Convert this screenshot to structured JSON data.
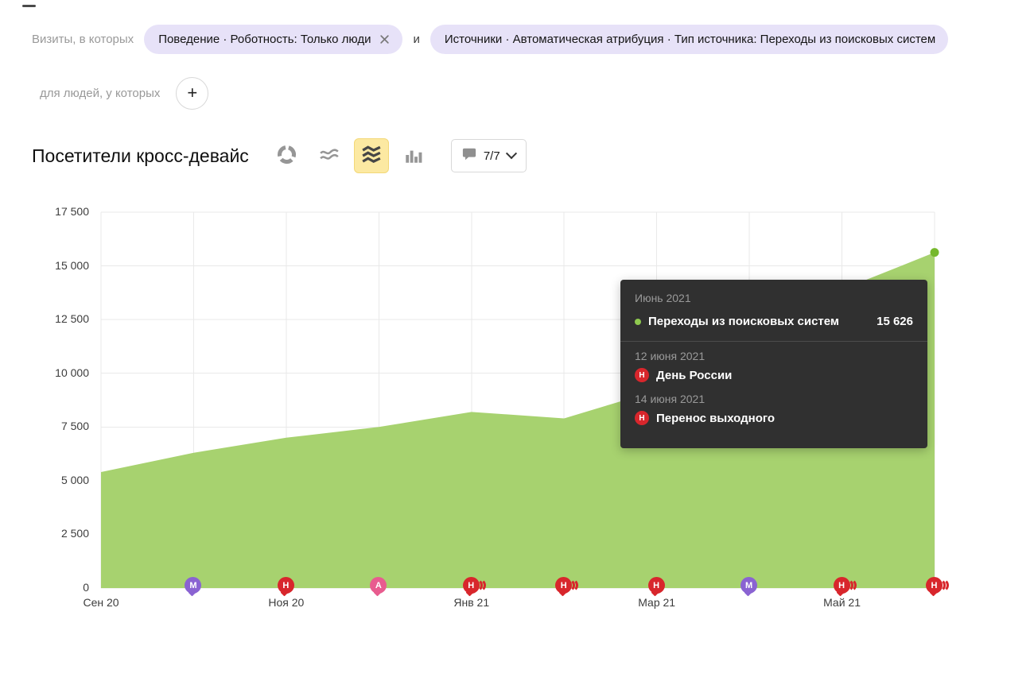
{
  "filters": {
    "prefix": "Визиты, в которых",
    "connector": "и",
    "chips": [
      {
        "label": "Поведение · Роботность: Только люди"
      },
      {
        "label": "Источники · Автоматическая атрибуция · Тип источника: Переходы из поисковых систем"
      }
    ],
    "second_row_label": "для людей, у которых",
    "add_label": "+"
  },
  "header": {
    "title": "Посетители кросс-девайс",
    "comments_count": "7/7"
  },
  "chart_data": {
    "type": "area",
    "title": "Посетители кросс-девайс",
    "x_count": 10,
    "x_ticks": [
      {
        "index": 0,
        "label": "Сен 20"
      },
      {
        "index": 2,
        "label": "Ноя 20"
      },
      {
        "index": 4,
        "label": "Янв 21"
      },
      {
        "index": 6,
        "label": "Мар 21"
      },
      {
        "index": 8,
        "label": "Май 21"
      }
    ],
    "series": [
      {
        "name": "Переходы из поисковых систем",
        "color": "#a7d26f",
        "values": [
          5400,
          6300,
          7000,
          7500,
          8200,
          7900,
          9200,
          11500,
          13900,
          15626
        ]
      }
    ],
    "ylim": [
      0,
      17500
    ],
    "y_ticks": [
      0,
      2500,
      5000,
      7500,
      10000,
      12500,
      15000,
      17500
    ],
    "y_tick_labels": [
      "0",
      "2 500",
      "5 000",
      "7 500",
      "10 000",
      "12 500",
      "15 000",
      "17 500"
    ],
    "grid": true,
    "legend_position": "tooltip",
    "end_dot": {
      "x_index": 9,
      "value": 15626,
      "color": "#76b82c"
    },
    "markers": [
      {
        "x_index": 1,
        "letter": "М",
        "color": "#8a63d2",
        "echoes": 0
      },
      {
        "x_index": 2,
        "letter": "Н",
        "color": "#d8262c",
        "echoes": 0
      },
      {
        "x_index": 3,
        "letter": "А",
        "color": "#e85c8f",
        "echoes": 0
      },
      {
        "x_index": 4,
        "letter": "Н",
        "color": "#d8262c",
        "echoes": 2
      },
      {
        "x_index": 5,
        "letter": "Н",
        "color": "#d8262c",
        "echoes": 2
      },
      {
        "x_index": 6,
        "letter": "Н",
        "color": "#d8262c",
        "echoes": 0
      },
      {
        "x_index": 7,
        "letter": "М",
        "color": "#8a63d2",
        "echoes": 0
      },
      {
        "x_index": 8,
        "letter": "Н",
        "color": "#d8262c",
        "echoes": 2
      },
      {
        "x_index": 9,
        "letter": "Н",
        "color": "#d8262c",
        "echoes": 2
      }
    ]
  },
  "tooltip": {
    "header": "Июнь 2021",
    "series_row": {
      "label": "Переходы из поисковых систем",
      "value": "15 626",
      "dot_color": "#8fc94f"
    },
    "events": [
      {
        "date": "12 июня 2021",
        "badge": "Н",
        "title": "День России"
      },
      {
        "date": "14 июня 2021",
        "badge": "Н",
        "title": "Перенос выходного"
      }
    ]
  }
}
